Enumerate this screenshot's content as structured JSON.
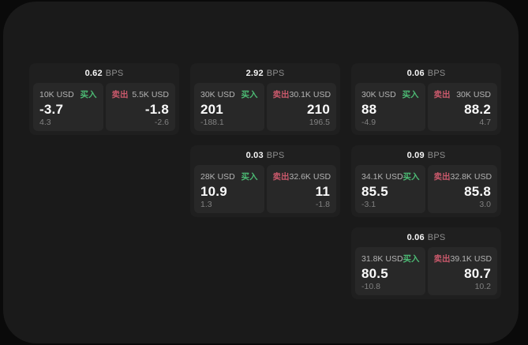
{
  "labels": {
    "bps": "BPS",
    "buy": "买入",
    "sell": "卖出"
  },
  "colors": {
    "buy_green": "#4cba74",
    "sell_red": "#c9596b",
    "window_bg": "#1a1a1a",
    "card_bg": "#1f1f1f",
    "tile_bg": "#282828"
  },
  "cards": [
    {
      "row": 1,
      "col": 1,
      "bps": "0.62",
      "buy": {
        "amount": "10K USD",
        "value": "-3.7",
        "sub": "4.3"
      },
      "sell": {
        "amount": "5.5K USD",
        "value": "-1.8",
        "sub": "-2.6"
      }
    },
    {
      "row": 1,
      "col": 2,
      "bps": "2.92",
      "buy": {
        "amount": "30K USD",
        "value": "201",
        "sub": "-188.1"
      },
      "sell": {
        "amount": "30.1K USD",
        "value": "210",
        "sub": "196.5"
      }
    },
    {
      "row": 1,
      "col": 3,
      "bps": "0.06",
      "buy": {
        "amount": "30K USD",
        "value": "88",
        "sub": "-4.9"
      },
      "sell": {
        "amount": "30K USD",
        "value": "88.2",
        "sub": "4.7"
      }
    },
    {
      "row": 2,
      "col": 2,
      "bps": "0.03",
      "buy": {
        "amount": "28K USD",
        "value": "10.9",
        "sub": "1.3"
      },
      "sell": {
        "amount": "32.6K USD",
        "value": "11",
        "sub": "-1.8"
      }
    },
    {
      "row": 2,
      "col": 3,
      "bps": "0.09",
      "buy": {
        "amount": "34.1K USD",
        "value": "85.5",
        "sub": "-3.1"
      },
      "sell": {
        "amount": "32.8K USD",
        "value": "85.8",
        "sub": "3.0"
      }
    },
    {
      "row": 3,
      "col": 3,
      "bps": "0.06",
      "buy": {
        "amount": "31.8K USD",
        "value": "80.5",
        "sub": "-10.8"
      },
      "sell": {
        "amount": "39.1K USD",
        "value": "80.7",
        "sub": "10.2"
      }
    }
  ]
}
